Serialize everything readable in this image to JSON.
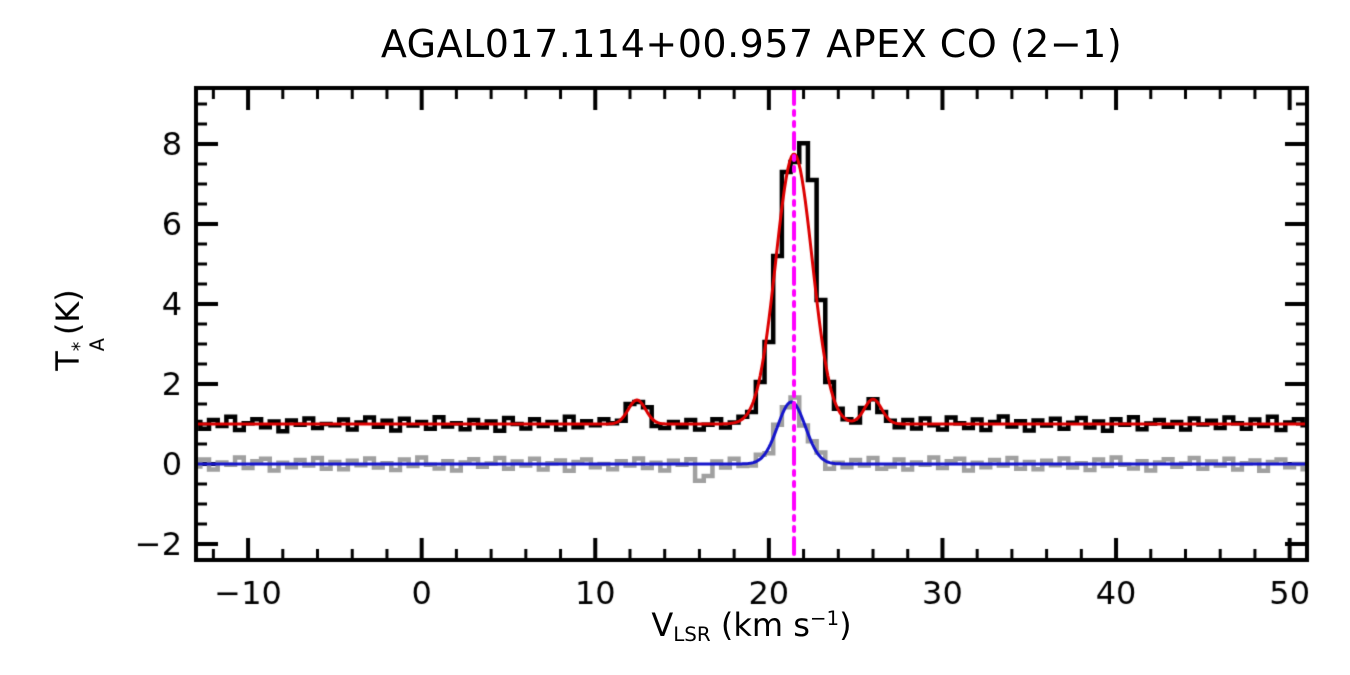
{
  "figure": {
    "background": "#ffffff",
    "axis_color": "#000000"
  },
  "labels": {
    "title": "AGAL017.114+00.957  APEX CO (2−1)",
    "ylabel_T": "T",
    "ylabel_star": "*",
    "ylabel_A": "A",
    "ylabel_unit": "(K)",
    "xlabel_V": "V",
    "xlabel_sub": "LSR",
    "xlabel_unit_open": "(km s",
    "xlabel_exp": "−1",
    "xlabel_close": ")"
  },
  "chart_data": {
    "type": "line",
    "title": "AGAL017.114+00.957  APEX CO (2−1)",
    "xlabel": "V_LSR (km s^−1)",
    "ylabel": "T_A^* (K)",
    "xlim": [
      -13,
      51
    ],
    "ylim": [
      -2.4,
      9.4
    ],
    "x_ticks": [
      -10,
      0,
      10,
      20,
      30,
      40,
      50
    ],
    "y_ticks": [
      -2,
      0,
      2,
      4,
      6,
      8
    ],
    "x_minor_step": 2,
    "y_minor_step": 0.5,
    "x_major_step": 10,
    "y_major_step": 2,
    "grid": false,
    "legend": "none",
    "x_start": -13.0,
    "x_step": 0.5,
    "series": [
      {
        "name": "observed-spectrum",
        "color": "#000000",
        "style": "histogram",
        "width": 4.5,
        "values": [
          1.05,
          0.88,
          1.1,
          0.95,
          1.18,
          0.85,
          1.02,
          1.12,
          0.92,
          1.06,
          0.82,
          1.09,
          0.98,
          1.14,
          0.9,
          1.0,
          0.97,
          1.11,
          0.86,
          1.04,
          1.16,
          0.93,
          1.08,
          0.84,
          1.13,
          0.96,
          1.05,
          0.88,
          1.17,
          0.94,
          1.02,
          0.87,
          1.1,
          0.91,
          1.06,
          0.83,
          1.15,
          1.0,
          0.89,
          1.12,
          0.95,
          1.05,
          0.86,
          1.18,
          0.92,
          1.07,
          0.97,
          1.12,
          1.02,
          1.08,
          1.5,
          1.55,
          1.42,
          0.95,
          0.9,
          1.05,
          0.92,
          1.1,
          0.86,
          0.98,
          1.12,
          0.91,
          1.04,
          1.18,
          1.3,
          2.05,
          3.05,
          5.2,
          7.3,
          7.55,
          8.02,
          7.1,
          4.1,
          2.05,
          1.38,
          1.12,
          1.04,
          1.4,
          1.62,
          1.3,
          1.08,
          0.92,
          1.1,
          0.89,
          1.14,
          0.97,
          0.86,
          1.16,
          1.02,
          0.9,
          1.11,
          0.85,
          1.05,
          1.19,
          0.94,
          1.07,
          0.84,
          1.09,
          0.96,
          1.13,
          0.88,
          1.03,
          1.15,
          0.91,
          1.06,
          0.83,
          1.12,
          0.98,
          1.17,
          0.87,
          1.01,
          1.1,
          0.93,
          1.05,
          0.86,
          1.14,
          0.99,
          1.08,
          0.9,
          1.16,
          1.02,
          0.88,
          1.11,
          0.95,
          1.18,
          0.85,
          1.04,
          1.12,
          0.97
        ]
      },
      {
        "name": "offset-spectrum",
        "color": "#a0a0a0",
        "style": "histogram",
        "width": 4.5,
        "values": [
          -0.06,
          0.11,
          -0.14,
          0.04,
          -0.02,
          0.16,
          -0.1,
          0.07,
          0.13,
          -0.16,
          0.03,
          -0.08,
          0.1,
          -0.04,
          0.15,
          -0.12,
          0.05,
          -0.13,
          0.08,
          -0.03,
          0.14,
          -0.09,
          0.02,
          -0.15,
          0.11,
          -0.05,
          0.16,
          -0.02,
          -0.11,
          0.07,
          -0.16,
          0.04,
          0.12,
          -0.07,
          0.01,
          0.15,
          -0.12,
          0.06,
          -0.04,
          0.13,
          -0.14,
          0.02,
          0.09,
          -0.17,
          0.05,
          0.11,
          -0.08,
          0.0,
          -0.13,
          0.07,
          -0.04,
          0.14,
          -0.1,
          0.03,
          -0.16,
          0.08,
          -0.02,
          0.12,
          -0.42,
          -0.3,
          0.06,
          -0.09,
          0.13,
          -0.05,
          -0.04,
          0.23,
          0.27,
          0.98,
          1.42,
          1.66,
          0.96,
          0.57,
          0.29,
          -0.12,
          0.03,
          -0.08,
          0.1,
          -0.04,
          0.15,
          -0.12,
          -0.06,
          0.11,
          -0.14,
          0.04,
          -0.02,
          0.16,
          -0.1,
          0.07,
          0.13,
          -0.16,
          0.03,
          -0.08,
          0.1,
          -0.04,
          0.15,
          -0.12,
          0.05,
          -0.13,
          0.08,
          -0.03,
          0.14,
          -0.09,
          0.02,
          -0.15,
          0.11,
          -0.05,
          0.16,
          -0.02,
          -0.11,
          0.07,
          -0.16,
          0.04,
          0.12,
          -0.07,
          0.01,
          0.15,
          -0.12,
          0.06,
          -0.04,
          0.13,
          -0.14,
          0.02,
          0.09,
          -0.17,
          0.05,
          0.11,
          -0.08,
          0.0,
          -0.13
        ]
      },
      {
        "name": "gaussian-fit-main",
        "color": "#dd0000",
        "style": "smooth",
        "width": 3,
        "baseline": 1.0,
        "components": [
          {
            "center": 21.45,
            "amplitude": 6.75,
            "sigma": 1.05
          },
          {
            "center": 12.4,
            "amplitude": 0.6,
            "sigma": 0.5
          },
          {
            "center": 26.0,
            "amplitude": 0.62,
            "sigma": 0.5
          }
        ]
      },
      {
        "name": "gaussian-fit-offset",
        "color": "#1515cc",
        "style": "smooth",
        "width": 3,
        "baseline": 0.0,
        "components": [
          {
            "center": 21.3,
            "amplitude": 1.55,
            "sigma": 0.8
          }
        ]
      }
    ],
    "vline": {
      "x": 21.45,
      "color": "#ff00ff",
      "style": "dash-dot-dot",
      "width": 4
    }
  }
}
